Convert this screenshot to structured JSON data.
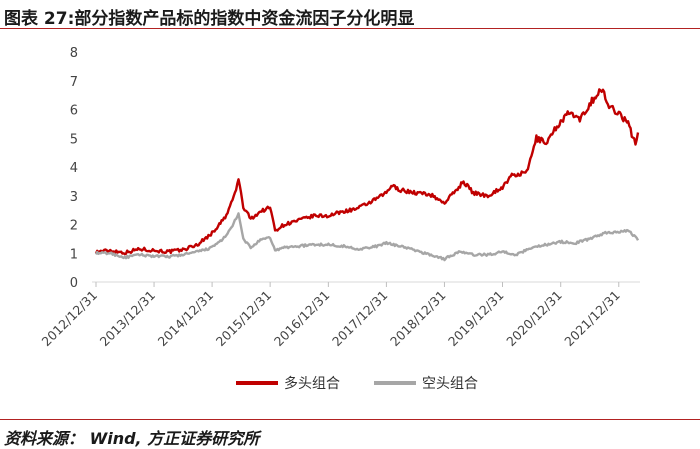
{
  "header": {
    "title": "图表 27:部分指数产品标的指数中资金流因子分化明显"
  },
  "footer": {
    "source": "资料来源： Wind, 方正证券研究所"
  },
  "chart_data": {
    "type": "line",
    "title": "",
    "xlabel": "",
    "ylabel": "",
    "ylim": [
      0,
      8
    ],
    "yticks": [
      "0",
      "1",
      "2",
      "3",
      "4",
      "5",
      "6",
      "7",
      "8"
    ],
    "x_ticks": [
      "2012/12/31",
      "2013/12/31",
      "2014/12/31",
      "2015/12/31",
      "2016/12/31",
      "2017/12/31",
      "2018/12/31",
      "2019/12/31",
      "2020/12/31",
      "2021/12/31"
    ],
    "grid": false,
    "legend": "bottom-center",
    "series": [
      {
        "name": "多头组合",
        "color": "#c00000",
        "points": [
          [
            "2012/12/31",
            1.05
          ],
          [
            "2013/03/31",
            1.1
          ],
          [
            "2013/06/30",
            1.02
          ],
          [
            "2013/09/30",
            1.15
          ],
          [
            "2013/12/31",
            1.1
          ],
          [
            "2014/03/31",
            1.05
          ],
          [
            "2014/06/30",
            1.12
          ],
          [
            "2014/09/30",
            1.3
          ],
          [
            "2014/12/31",
            1.7
          ],
          [
            "2015/03/31",
            2.3
          ],
          [
            "2015/05/31",
            3.2
          ],
          [
            "2015/06/15",
            3.6
          ],
          [
            "2015/07/15",
            2.6
          ],
          [
            "2015/08/31",
            2.2
          ],
          [
            "2015/10/31",
            2.45
          ],
          [
            "2015/12/31",
            2.6
          ],
          [
            "2016/01/31",
            1.8
          ],
          [
            "2016/03/31",
            2.0
          ],
          [
            "2016/06/30",
            2.15
          ],
          [
            "2016/09/30",
            2.3
          ],
          [
            "2016/12/31",
            2.3
          ],
          [
            "2017/03/31",
            2.45
          ],
          [
            "2017/06/30",
            2.55
          ],
          [
            "2017/09/30",
            2.8
          ],
          [
            "2017/12/31",
            3.1
          ],
          [
            "2018/01/31",
            3.35
          ],
          [
            "2018/03/31",
            3.2
          ],
          [
            "2018/06/30",
            3.1
          ],
          [
            "2018/09/30",
            3.05
          ],
          [
            "2018/12/31",
            2.75
          ],
          [
            "2019/03/31",
            3.3
          ],
          [
            "2019/04/30",
            3.5
          ],
          [
            "2019/06/30",
            3.1
          ],
          [
            "2019/09/30",
            3.0
          ],
          [
            "2019/12/31",
            3.3
          ],
          [
            "2020/02/28",
            3.7
          ],
          [
            "2020/05/31",
            3.8
          ],
          [
            "2020/07/31",
            5.0
          ],
          [
            "2020/09/30",
            4.85
          ],
          [
            "2020/12/31",
            5.6
          ],
          [
            "2021/02/28",
            5.9
          ],
          [
            "2021/04/30",
            5.6
          ],
          [
            "2021/06/30",
            6.2
          ],
          [
            "2021/09/15",
            6.7
          ],
          [
            "2021/10/31",
            6.1
          ],
          [
            "2021/12/31",
            5.9
          ],
          [
            "2022/02/28",
            5.5
          ],
          [
            "2022/04/15",
            4.8
          ],
          [
            "2022/05/01",
            5.2
          ]
        ]
      },
      {
        "name": "空头组合",
        "color": "#a6a6a6",
        "points": [
          [
            "2012/12/31",
            1.0
          ],
          [
            "2013/03/31",
            1.0
          ],
          [
            "2013/06/30",
            0.85
          ],
          [
            "2013/09/30",
            0.95
          ],
          [
            "2013/12/31",
            0.9
          ],
          [
            "2014/03/31",
            0.88
          ],
          [
            "2014/06/30",
            0.95
          ],
          [
            "2014/09/30",
            1.05
          ],
          [
            "2014/12/31",
            1.2
          ],
          [
            "2015/03/31",
            1.6
          ],
          [
            "2015/05/31",
            2.2
          ],
          [
            "2015/06/15",
            2.35
          ],
          [
            "2015/07/15",
            1.5
          ],
          [
            "2015/08/31",
            1.2
          ],
          [
            "2015/10/31",
            1.45
          ],
          [
            "2015/12/31",
            1.55
          ],
          [
            "2016/01/31",
            1.1
          ],
          [
            "2016/03/31",
            1.2
          ],
          [
            "2016/06/30",
            1.25
          ],
          [
            "2016/09/30",
            1.3
          ],
          [
            "2016/12/31",
            1.3
          ],
          [
            "2017/03/31",
            1.25
          ],
          [
            "2017/06/30",
            1.15
          ],
          [
            "2017/09/30",
            1.2
          ],
          [
            "2017/12/31",
            1.35
          ],
          [
            "2018/03/31",
            1.25
          ],
          [
            "2018/06/30",
            1.1
          ],
          [
            "2018/09/30",
            0.95
          ],
          [
            "2018/12/31",
            0.8
          ],
          [
            "2019/03/31",
            1.05
          ],
          [
            "2019/06/30",
            0.95
          ],
          [
            "2019/09/30",
            0.95
          ],
          [
            "2019/12/31",
            1.05
          ],
          [
            "2020/03/31",
            0.95
          ],
          [
            "2020/06/30",
            1.2
          ],
          [
            "2020/09/30",
            1.3
          ],
          [
            "2020/12/31",
            1.4
          ],
          [
            "2021/03/31",
            1.35
          ],
          [
            "2021/06/30",
            1.5
          ],
          [
            "2021/09/30",
            1.7
          ],
          [
            "2021/12/31",
            1.75
          ],
          [
            "2022/02/28",
            1.8
          ],
          [
            "2022/04/15",
            1.55
          ],
          [
            "2022/05/01",
            1.45
          ]
        ]
      }
    ]
  }
}
